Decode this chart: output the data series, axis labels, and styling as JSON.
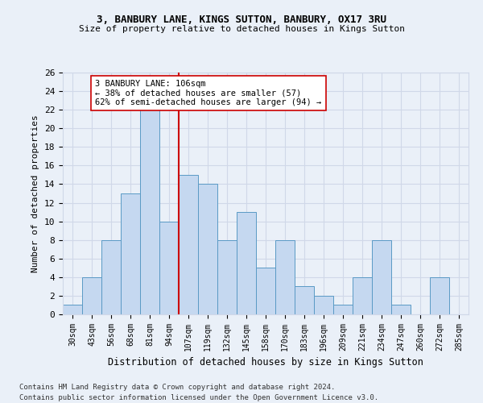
{
  "title1": "3, BANBURY LANE, KINGS SUTTON, BANBURY, OX17 3RU",
  "title2": "Size of property relative to detached houses in Kings Sutton",
  "xlabel": "Distribution of detached houses by size in Kings Sutton",
  "ylabel": "Number of detached properties",
  "footnote1": "Contains HM Land Registry data © Crown copyright and database right 2024.",
  "footnote2": "Contains public sector information licensed under the Open Government Licence v3.0.",
  "categories": [
    "30sqm",
    "43sqm",
    "56sqm",
    "68sqm",
    "81sqm",
    "94sqm",
    "107sqm",
    "119sqm",
    "132sqm",
    "145sqm",
    "158sqm",
    "170sqm",
    "183sqm",
    "196sqm",
    "209sqm",
    "221sqm",
    "234sqm",
    "247sqm",
    "260sqm",
    "272sqm",
    "285sqm"
  ],
  "values": [
    1,
    4,
    8,
    13,
    22,
    10,
    15,
    14,
    8,
    11,
    5,
    8,
    3,
    2,
    1,
    4,
    8,
    1,
    0,
    4,
    0
  ],
  "bar_color": "#c5d8f0",
  "bar_edge_color": "#5a9ac5",
  "grid_color": "#d0d8e8",
  "background_color": "#eaf0f8",
  "vline_x": 5.5,
  "vline_color": "#cc0000",
  "annotation_line1": "3 BANBURY LANE: 106sqm",
  "annotation_line2": "← 38% of detached houses are smaller (57)",
  "annotation_line3": "62% of semi-detached houses are larger (94) →",
  "annotation_box_color": "white",
  "annotation_box_edge": "#cc0000",
  "ylim": [
    0,
    26
  ],
  "yticks": [
    0,
    2,
    4,
    6,
    8,
    10,
    12,
    14,
    16,
    18,
    20,
    22,
    24,
    26
  ]
}
